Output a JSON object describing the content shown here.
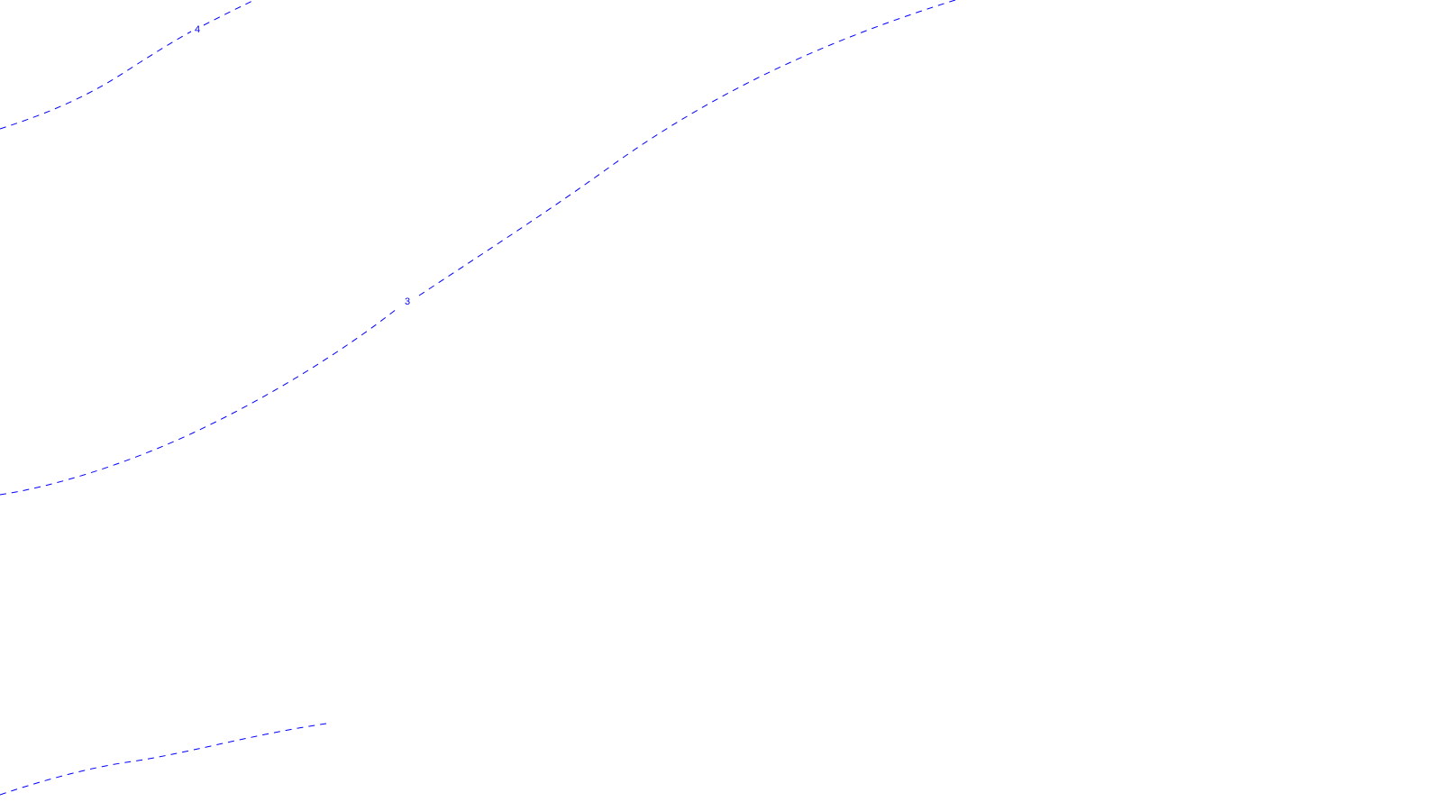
{
  "map": {
    "line_color": "#0000ff",
    "background_color": "#ffffff",
    "contour_labels": {
      "four": "4",
      "three": "3"
    }
  }
}
